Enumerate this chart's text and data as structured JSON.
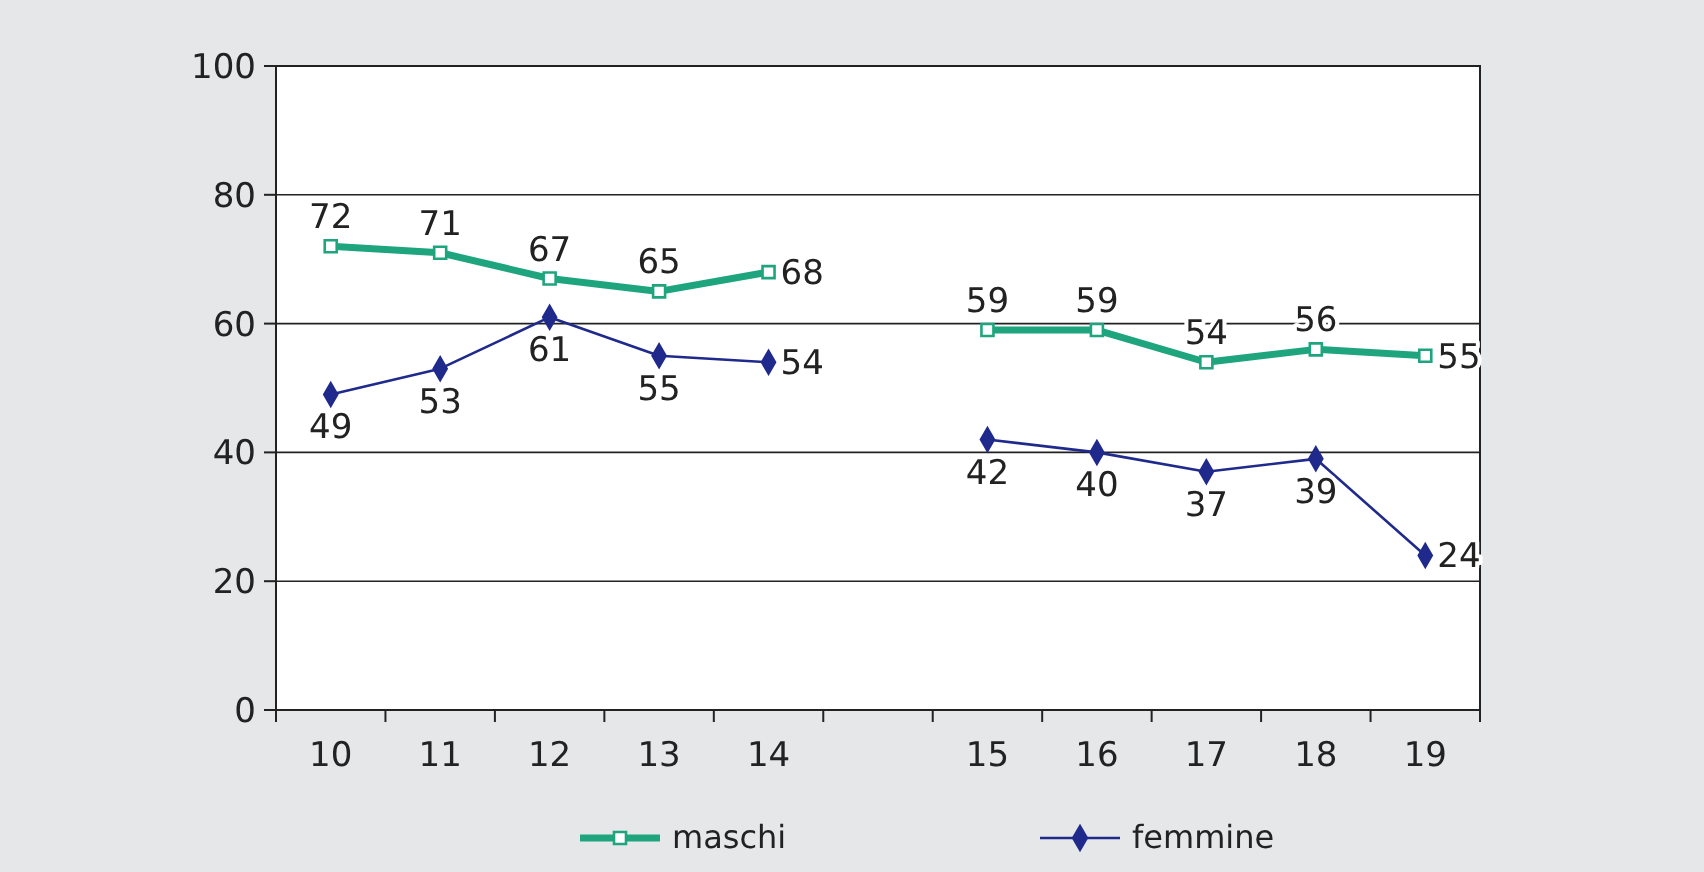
{
  "chart_data": {
    "type": "line",
    "categories": [
      "10",
      "11",
      "12",
      "13",
      "14",
      null,
      "15",
      "16",
      "17",
      "18",
      "19"
    ],
    "series": [
      {
        "name": "maschi",
        "color": "#1fa57e",
        "marker": "square",
        "values": [
          72,
          71,
          67,
          65,
          68,
          null,
          59,
          59,
          54,
          56,
          55
        ]
      },
      {
        "name": "femmine",
        "color": "#1f2a8c",
        "marker": "diamond",
        "values": [
          49,
          53,
          61,
          55,
          54,
          null,
          42,
          40,
          37,
          39,
          24
        ]
      }
    ],
    "ylim": [
      0,
      100
    ],
    "yticks": [
      0,
      20,
      40,
      60,
      80,
      100
    ],
    "grid": "y",
    "legend": "bottom",
    "data_labels": true
  }
}
